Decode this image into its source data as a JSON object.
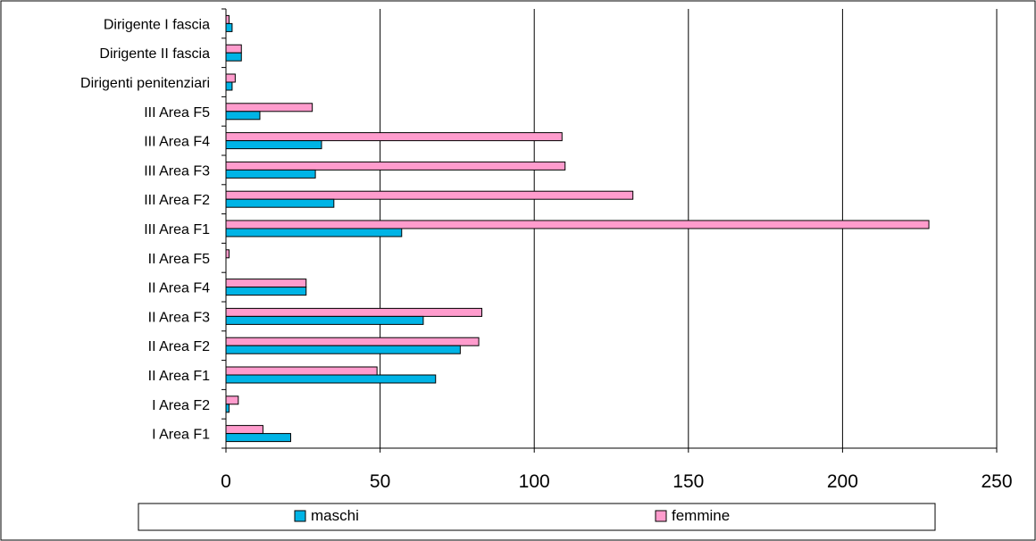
{
  "chart_data": {
    "type": "bar",
    "orientation": "horizontal",
    "categories": [
      "Dirigente I fascia",
      "Dirigente II fascia",
      "Dirigenti penitenziari",
      "III Area F5",
      "III Area F4",
      "III Area F3",
      "III Area F2",
      "III Area F1",
      "II Area F5",
      "II Area F4",
      "II Area F3",
      "II Area F2",
      "II Area F1",
      "I Area F2",
      "I Area F1"
    ],
    "series": [
      {
        "name": "maschi",
        "color": "#00b4e6",
        "values": [
          2,
          5,
          2,
          11,
          31,
          29,
          35,
          57,
          0,
          26,
          64,
          76,
          68,
          1,
          21
        ]
      },
      {
        "name": "femmine",
        "color": "#ff9ccd",
        "values": [
          1,
          5,
          3,
          28,
          109,
          110,
          132,
          228,
          1,
          26,
          83,
          82,
          49,
          4,
          12
        ]
      }
    ],
    "xlim": [
      0,
      250
    ],
    "xticks": [
      "0",
      "50",
      "100",
      "150",
      "200",
      "250"
    ],
    "grid": true,
    "legend_position": "bottom"
  }
}
